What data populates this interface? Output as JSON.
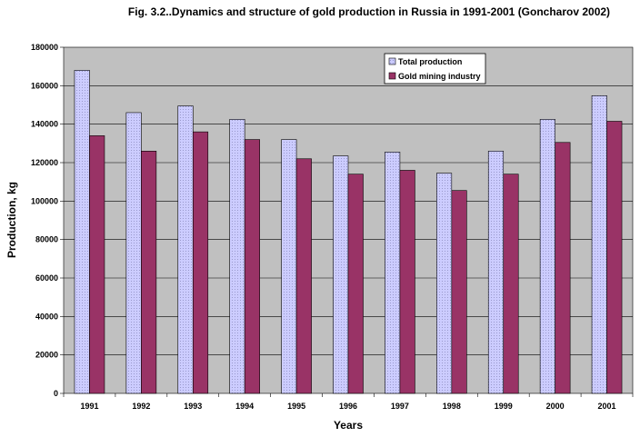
{
  "chart_data": {
    "type": "bar",
    "title": "Fig. 3.2..Dynamics and structure of gold production in Russia in 1991-2001 (Goncharov 2002)",
    "xlabel": "Years",
    "ylabel": "Production, kg",
    "ylim": [
      0,
      180000
    ],
    "yticks": [
      "0",
      "20000",
      "40000",
      "60000",
      "80000",
      "100000",
      "120000",
      "140000",
      "160000",
      "180000"
    ],
    "categories": [
      "1991",
      "1992",
      "1993",
      "1994",
      "1995",
      "1996",
      "1997",
      "1998",
      "1999",
      "2000",
      "2001"
    ],
    "series": [
      {
        "name": "Total production",
        "values": [
          168000,
          146000,
          149500,
          142500,
          132000,
          123500,
          125500,
          114500,
          126000,
          142500,
          154800
        ],
        "color": "#ccccff"
      },
      {
        "name": "Gold mining industry",
        "values": [
          134000,
          126000,
          136000,
          132000,
          122000,
          114000,
          116000,
          105500,
          114000,
          130500,
          141500
        ],
        "color": "#993366"
      }
    ],
    "grid": true,
    "legend_position": "top-right",
    "plot_background": "#c0c0c0"
  }
}
